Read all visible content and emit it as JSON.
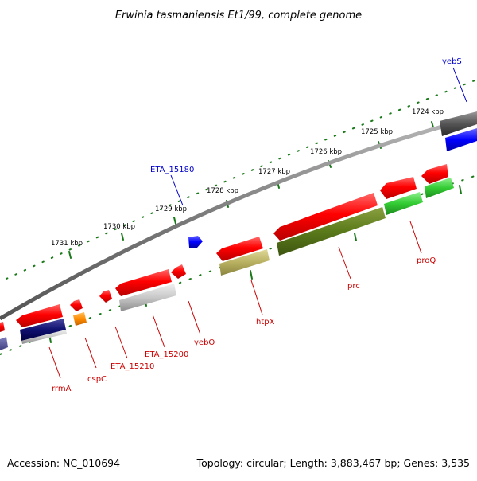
{
  "title": "Erwinia tasmaniensis Et1/99, complete genome",
  "footer": {
    "accession": "Accession: NC_010694",
    "topology": "Topology: circular; Length: 3,883,467 bp; Genes: 3,535"
  },
  "colors": {
    "forward_label": "#0000cc",
    "reverse_label": "#cc0000",
    "tick": "#1a7a1a",
    "backbone": "#808080"
  },
  "kbp_ticks": [
    {
      "label": "1724 kbp"
    },
    {
      "label": "1725 kbp"
    },
    {
      "label": "1726 kbp"
    },
    {
      "label": "1727 kbp"
    },
    {
      "label": "1728 kbp"
    },
    {
      "label": "1729 kbp"
    },
    {
      "label": "1730 kbp"
    },
    {
      "label": "1731 kbp"
    }
  ],
  "genes": [
    {
      "name": "yebS",
      "strand": "forward",
      "label_color": "#0000cc"
    },
    {
      "name": "ETA_15180",
      "strand": "forward",
      "label_color": "#0000cc"
    },
    {
      "name": "proQ",
      "strand": "reverse",
      "label_color": "#cc0000"
    },
    {
      "name": "prc",
      "strand": "reverse",
      "label_color": "#cc0000"
    },
    {
      "name": "htpX",
      "strand": "reverse",
      "label_color": "#cc0000"
    },
    {
      "name": "yebO",
      "strand": "reverse",
      "label_color": "#cc0000"
    },
    {
      "name": "ETA_15200",
      "strand": "reverse",
      "label_color": "#cc0000"
    },
    {
      "name": "ETA_15210",
      "strand": "reverse",
      "label_color": "#cc0000"
    },
    {
      "name": "cspC",
      "strand": "reverse",
      "label_color": "#cc0000"
    },
    {
      "name": "rrmA",
      "strand": "reverse",
      "label_color": "#cc0000"
    }
  ]
}
